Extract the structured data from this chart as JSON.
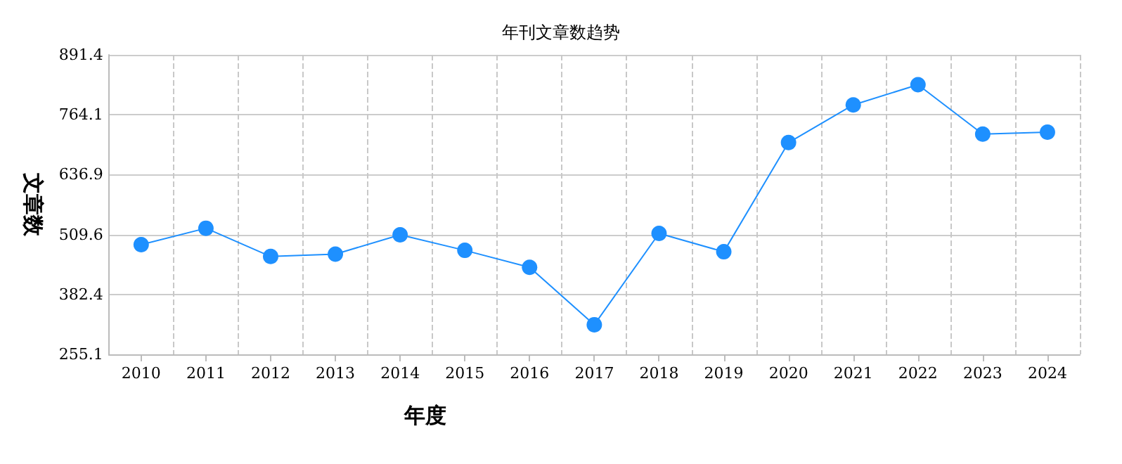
{
  "chart_data": {
    "type": "line",
    "title": "年刊文章数趋势",
    "xlabel": "年度",
    "ylabel": "文章数",
    "categories": [
      "2010",
      "2011",
      "2012",
      "2013",
      "2014",
      "2015",
      "2016",
      "2017",
      "2018",
      "2019",
      "2020",
      "2021",
      "2022",
      "2023",
      "2024"
    ],
    "series": [
      {
        "color": "#1e90ff",
        "values": [
          488,
          523,
          463,
          468,
          509,
          476,
          440,
          318,
          512,
          473,
          705,
          785,
          828,
          723,
          727
        ]
      }
    ],
    "ylim": [
      255.1,
      891.4
    ],
    "yticks": [
      255.1,
      382.4,
      509.6,
      636.9,
      764.1,
      891.4
    ],
    "grid": true,
    "marker": "circle",
    "line_style": "solid"
  }
}
